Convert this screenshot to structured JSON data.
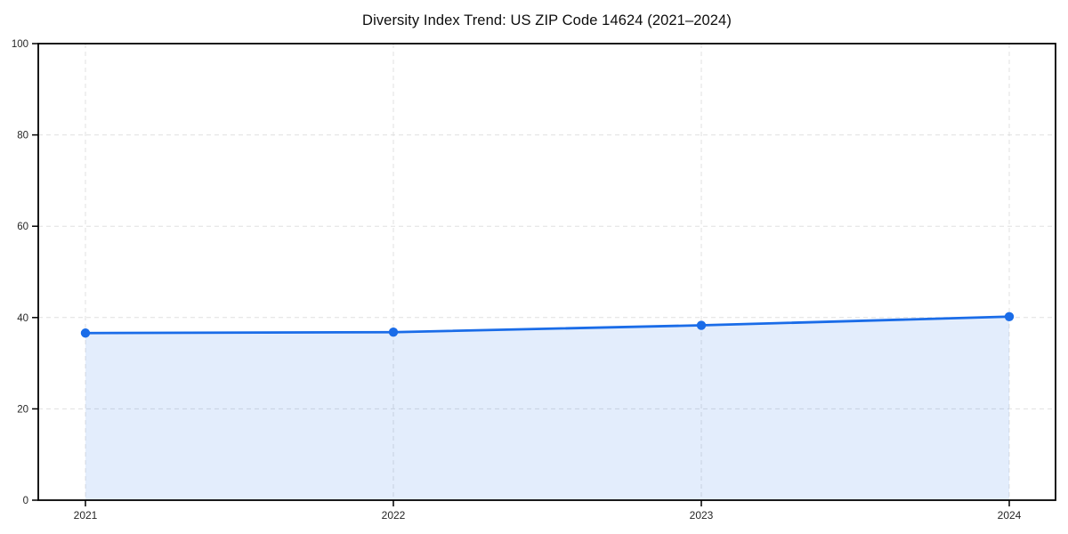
{
  "chart_data": {
    "type": "line",
    "title": "Diversity Index Trend: US ZIP Code 14624 (2021–2024)",
    "categories": [
      "2021",
      "2022",
      "2023",
      "2024"
    ],
    "series": [
      {
        "name": "Diversity Index",
        "values": [
          36.6,
          36.8,
          38.3,
          40.2
        ]
      }
    ],
    "xlabel": "",
    "ylabel": "",
    "ylim": [
      0,
      100
    ],
    "yticks": [
      0,
      20,
      40,
      60,
      80,
      100
    ],
    "grid": true,
    "grid_style": "dashed",
    "legend_position": "none",
    "area_fill": true,
    "marker": "circle",
    "colors": {
      "line": "#1a6ce8",
      "marker": "#1a6ce8",
      "area_fill": "#1a6ce8",
      "area_fill_opacity": "0.12",
      "grid": "#e0e0e0",
      "spine": "#000000",
      "tick_label": "#262626",
      "title": "#0d0d0d",
      "background": "#ffffff"
    }
  }
}
